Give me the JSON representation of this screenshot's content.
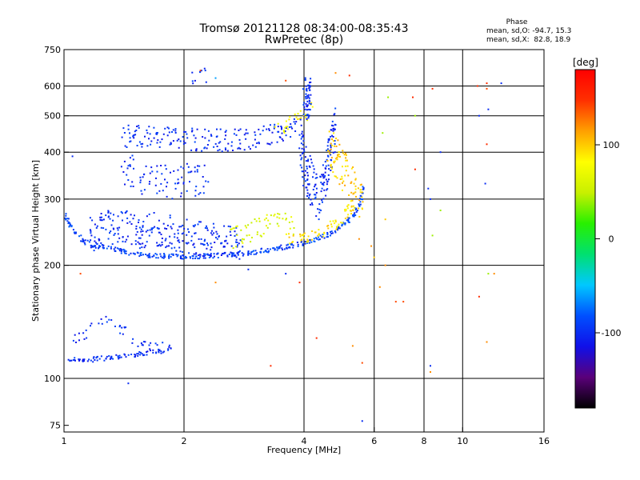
{
  "chart_data": {
    "type": "scatter",
    "title": "Tromsø 20121128 08:34:00-08:35:43",
    "subtitle": "RwPretec (8p)",
    "xlabel": "Frequency [MHz]",
    "ylabel": "Stationary phase Virtual Height [km]",
    "xscale": "log",
    "yscale": "log",
    "xlim": [
      1,
      16
    ],
    "ylim": [
      72,
      750
    ],
    "xticks": [
      1,
      2,
      4,
      6,
      8,
      10,
      16
    ],
    "xtick_labels": [
      "1",
      "2",
      "4",
      "6",
      "8",
      "10",
      "16"
    ],
    "yticks": [
      75,
      100,
      200,
      300,
      400,
      500,
      600,
      750
    ],
    "ytick_labels": [
      "75",
      "100",
      "200",
      "300",
      "400",
      "500",
      "600",
      "750"
    ],
    "vertical_gridlines": [
      2,
      4,
      6,
      8,
      10
    ],
    "horizontal_gridlines": [
      100,
      200,
      300,
      400,
      500,
      600
    ],
    "grid": true,
    "stats": {
      "heading": "Phase",
      "line_o": "mean, sd,O: -94.7, 15.3",
      "line_x": "mean, sd,X:  82.8, 18.9"
    },
    "colorbar": {
      "unit": "[deg]",
      "min": -180,
      "max": 180,
      "ticks": [
        100,
        0,
        -100
      ],
      "tick_labels": [
        "100",
        "0",
        "-100"
      ],
      "colors": [
        "#000000",
        "#5a007a",
        "#1010e8",
        "#0050ff",
        "#00c8ff",
        "#00e070",
        "#28f000",
        "#c8f000",
        "#ffff00",
        "#ffa000",
        "#ff3000",
        "#ff0000"
      ]
    },
    "traces": [
      {
        "x": [
          1.02,
          1.08,
          1.15,
          1.25,
          1.35,
          1.45,
          1.55,
          1.65,
          1.75,
          1.85
        ],
        "y": [
          113,
          112,
          112,
          113,
          114,
          115,
          116,
          117,
          118,
          121
        ],
        "phase": -100,
        "spread": 3,
        "density": 4
      },
      {
        "x": [
          1.05,
          1.12,
          1.2,
          1.3,
          1.4,
          1.5,
          1.6,
          1.7,
          1.8
        ],
        "y": [
          125,
          130,
          137,
          142,
          135,
          128,
          124,
          122,
          125
        ],
        "phase": -100,
        "spread": 8,
        "density": 2
      },
      {
        "x": [
          1.0,
          1.05,
          1.12,
          1.2,
          1.3,
          1.4,
          1.55,
          1.7,
          1.9,
          2.1,
          2.4,
          2.7,
          3.0,
          3.3,
          3.6,
          3.9,
          4.3,
          4.7,
          5.0,
          5.3,
          5.5,
          5.65
        ],
        "y": [
          275,
          250,
          232,
          225,
          222,
          218,
          214,
          212,
          211,
          211,
          212,
          214,
          217,
          220,
          224,
          228,
          234,
          244,
          255,
          270,
          290,
          320
        ],
        "phase": -90,
        "spread": 3,
        "density": 5
      },
      {
        "x": [
          1.15,
          1.25,
          1.35,
          1.45,
          1.55,
          1.65,
          1.75,
          1.85,
          1.95,
          2.05,
          2.2,
          2.35,
          2.5,
          2.65,
          2.8
        ],
        "y": [
          240,
          248,
          255,
          250,
          245,
          252,
          250,
          245,
          240,
          238,
          236,
          235,
          233,
          232,
          230
        ],
        "phase": -100,
        "spread": 22,
        "density": 8
      },
      {
        "x": [
          2.6,
          2.8,
          3.0,
          3.2,
          3.4,
          3.6,
          3.8
        ],
        "y": [
          234,
          240,
          250,
          258,
          262,
          260,
          256
        ],
        "phase": 60,
        "spread": 14,
        "density": 4
      },
      {
        "x": [
          1.55,
          1.7,
          1.85,
          2.0,
          2.15,
          2.3
        ],
        "y": [
          345,
          340,
          335,
          335,
          340,
          335
        ],
        "phase": -100,
        "spread": 22,
        "density": 5
      },
      {
        "x": [
          1.4,
          1.45,
          1.5
        ],
        "y": [
          370,
          385,
          355
        ],
        "phase": -100,
        "spread": 30,
        "density": 4
      },
      {
        "x": [
          1.4,
          1.5,
          1.6,
          1.7,
          1.8,
          1.9,
          2.0,
          2.15,
          2.3,
          2.5,
          2.7,
          2.9,
          3.1,
          3.3,
          3.5,
          3.7,
          3.85
        ],
        "y": [
          445,
          440,
          440,
          438,
          436,
          434,
          433,
          432,
          430,
          430,
          431,
          433,
          437,
          442,
          450,
          460,
          472
        ],
        "phase": -100,
        "spread": 14,
        "density": 5
      },
      {
        "x": [
          3.4,
          3.6,
          3.8,
          4.0,
          4.2
        ],
        "y": [
          465,
          470,
          485,
          500,
          520
        ],
        "phase": 80,
        "spread": 10,
        "density": 3
      },
      {
        "x": [
          3.9,
          4.0,
          4.1,
          4.2,
          4.3,
          4.4,
          4.5,
          4.6,
          4.7,
          4.8
        ],
        "y": [
          430,
          380,
          350,
          320,
          300,
          310,
          340,
          380,
          420,
          460
        ],
        "phase": -100,
        "spread": 30,
        "density": 6
      },
      {
        "x": [
          4.0,
          4.05,
          4.1,
          4.15
        ],
        "y": [
          540,
          580,
          520,
          600
        ],
        "phase": -100,
        "spread": 20,
        "density": 5
      },
      {
        "x": [
          4.6,
          4.8,
          5.0,
          5.2,
          5.4,
          5.55,
          5.65
        ],
        "y": [
          430,
          390,
          360,
          330,
          310,
          300,
          290
        ],
        "phase": 100,
        "spread": 28,
        "density": 6
      },
      {
        "x": [
          3.6,
          4.0,
          4.4,
          4.8,
          5.1,
          5.4
        ],
        "y": [
          236,
          238,
          245,
          258,
          272,
          295
        ],
        "phase": 90,
        "spread": 8,
        "density": 4
      },
      {
        "x": [
          2.1,
          2.2,
          2.3
        ],
        "y": [
          630,
          640,
          635
        ],
        "phase": -100,
        "spread": 10,
        "density": 3
      }
    ],
    "points": [
      {
        "x": 2.2,
        "y": 660,
        "phase": 140
      },
      {
        "x": 2.4,
        "y": 630,
        "phase": -60
      },
      {
        "x": 3.6,
        "y": 620,
        "phase": 140
      },
      {
        "x": 4.8,
        "y": 650,
        "phase": 120
      },
      {
        "x": 5.2,
        "y": 640,
        "phase": 150
      },
      {
        "x": 1.05,
        "y": 390,
        "phase": -100
      },
      {
        "x": 1.1,
        "y": 190,
        "phase": 140
      },
      {
        "x": 6.3,
        "y": 450,
        "phase": 40
      },
      {
        "x": 6.5,
        "y": 560,
        "phase": 40
      },
      {
        "x": 7.5,
        "y": 560,
        "phase": 150
      },
      {
        "x": 7.6,
        "y": 500,
        "phase": 40
      },
      {
        "x": 8.4,
        "y": 590,
        "phase": 150
      },
      {
        "x": 8.2,
        "y": 320,
        "phase": -100
      },
      {
        "x": 8.3,
        "y": 300,
        "phase": -100
      },
      {
        "x": 8.4,
        "y": 240,
        "phase": 40
      },
      {
        "x": 8.8,
        "y": 280,
        "phase": 40
      },
      {
        "x": 8.8,
        "y": 400,
        "phase": -100
      },
      {
        "x": 7.6,
        "y": 360,
        "phase": 150
      },
      {
        "x": 11.0,
        "y": 500,
        "phase": -100
      },
      {
        "x": 11.5,
        "y": 610,
        "phase": 150
      },
      {
        "x": 11.5,
        "y": 590,
        "phase": 140
      },
      {
        "x": 11.6,
        "y": 520,
        "phase": -100
      },
      {
        "x": 11.5,
        "y": 420,
        "phase": 150
      },
      {
        "x": 11.4,
        "y": 330,
        "phase": -100
      },
      {
        "x": 11.6,
        "y": 190,
        "phase": 40
      },
      {
        "x": 12.0,
        "y": 190,
        "phase": 120
      },
      {
        "x": 12.5,
        "y": 610,
        "phase": -100
      },
      {
        "x": 6.4,
        "y": 200,
        "phase": 120
      },
      {
        "x": 6.2,
        "y": 175,
        "phase": 120
      },
      {
        "x": 6.8,
        "y": 160,
        "phase": 140
      },
      {
        "x": 7.1,
        "y": 160,
        "phase": 140
      },
      {
        "x": 8.3,
        "y": 108,
        "phase": -100
      },
      {
        "x": 8.3,
        "y": 104,
        "phase": 120
      },
      {
        "x": 5.6,
        "y": 77,
        "phase": -100
      },
      {
        "x": 5.6,
        "y": 110,
        "phase": 140
      },
      {
        "x": 3.3,
        "y": 108,
        "phase": 150
      },
      {
        "x": 2.4,
        "y": 180,
        "phase": 120
      },
      {
        "x": 2.9,
        "y": 195,
        "phase": -100
      },
      {
        "x": 3.6,
        "y": 190,
        "phase": -100
      },
      {
        "x": 3.9,
        "y": 180,
        "phase": 150
      },
      {
        "x": 1.45,
        "y": 97,
        "phase": -100
      },
      {
        "x": 4.3,
        "y": 128,
        "phase": 150
      },
      {
        "x": 5.3,
        "y": 122,
        "phase": 120
      },
      {
        "x": 5.5,
        "y": 235,
        "phase": 120
      },
      {
        "x": 5.9,
        "y": 225,
        "phase": 120
      },
      {
        "x": 11.5,
        "y": 125,
        "phase": 120
      },
      {
        "x": 11.0,
        "y": 165,
        "phase": 150
      },
      {
        "x": 6.4,
        "y": 265,
        "phase": 100
      },
      {
        "x": 6.0,
        "y": 210,
        "phase": 100
      },
      {
        "x": 10.9,
        "y": 600,
        "phase": 150
      }
    ]
  }
}
